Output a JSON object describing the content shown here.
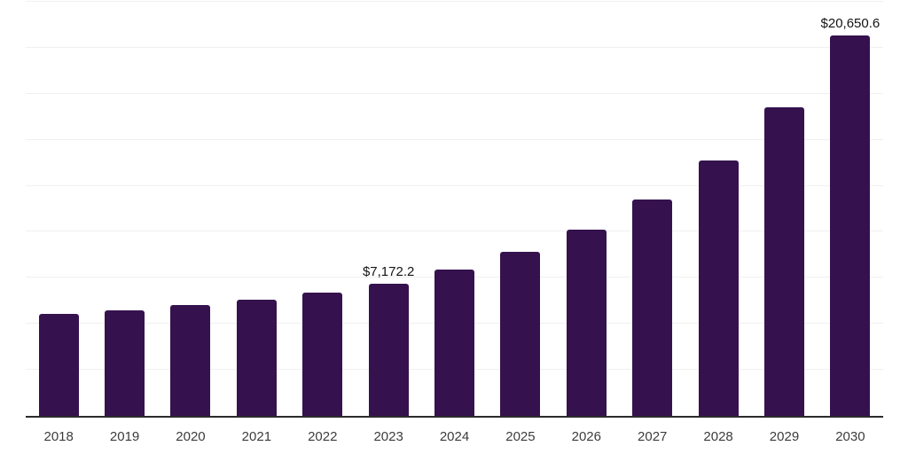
{
  "chart_data": {
    "type": "bar",
    "title": "",
    "xlabel": "",
    "ylabel": "",
    "categories": [
      "2018",
      "2019",
      "2020",
      "2021",
      "2022",
      "2023",
      "2024",
      "2025",
      "2026",
      "2027",
      "2028",
      "2029",
      "2030"
    ],
    "values": [
      5545,
      5735,
      6025,
      6290,
      6695,
      7172.2,
      7970,
      8930,
      10105,
      11760,
      13870,
      16750,
      20650.6
    ],
    "data_labels": [
      "",
      "",
      "",
      "",
      "",
      "$7,172.2",
      "",
      "",
      "",
      "",
      "",
      "",
      "$20,650.6"
    ],
    "ylim": [
      0,
      22500
    ],
    "grid_interval": 2500,
    "grid": true,
    "y_tick_labels_shown": false,
    "legend": "none",
    "colors": {
      "bar": "#35124E",
      "gridline": "#F0F0F0",
      "axis": "#2B2B2B",
      "tick_label": "#3C3C3C",
      "data_label": "#141414",
      "background": "#FFFFFF"
    }
  }
}
